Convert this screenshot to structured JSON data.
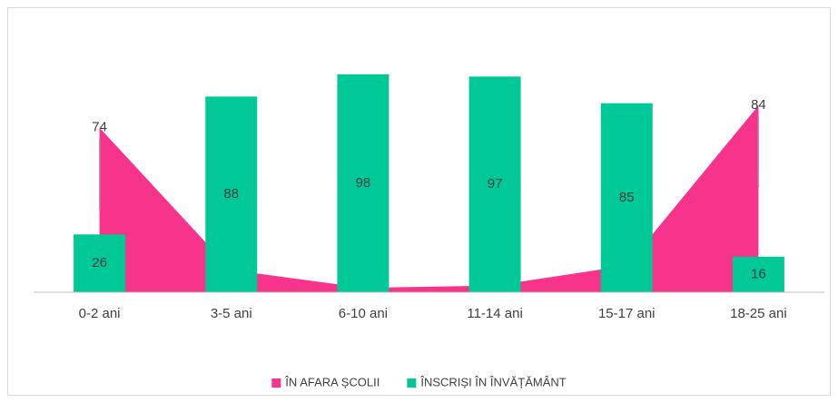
{
  "chart_data": {
    "type": "bar",
    "categories": [
      "0-2 ani",
      "3-5 ani",
      "6-10 ani",
      "11-14 ani",
      "15-17 ani",
      "18-25 ani"
    ],
    "series": [
      {
        "name": "ÎN AFARA ȘCOLII",
        "type": "area",
        "color": "#f7338b",
        "values": [
          74,
          10,
          2,
          3,
          12,
          84
        ],
        "value_labels": [
          "74",
          null,
          null,
          null,
          null,
          "84"
        ]
      },
      {
        "name": "ÎNSCRIȘI ÎN ÎNVĂȚĂMÂNT",
        "type": "bar",
        "color": "#00c896",
        "values": [
          26,
          88,
          98,
          97,
          85,
          16
        ]
      }
    ],
    "ylim": [
      0,
      100
    ],
    "legend": "bottom"
  }
}
